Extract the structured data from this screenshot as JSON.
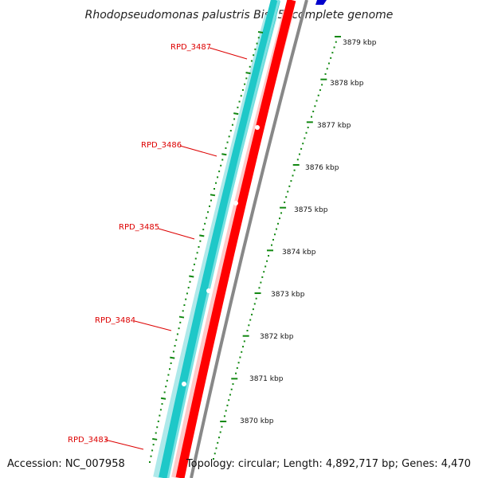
{
  "title": "Rhodopseudomonas palustris BisB5, complete genome",
  "footer": {
    "accession": "Accession: NC_007958",
    "summary": "Topology: circular; Length: 4,892,717 bp; Genes: 4,470"
  },
  "genes": [
    {
      "label": "RPD_3487"
    },
    {
      "label": "RPD_3486"
    },
    {
      "label": "RPD_3485"
    },
    {
      "label": "RPD_3484"
    },
    {
      "label": "RPD_3483"
    }
  ],
  "ticks": [
    {
      "label": "3879 kbp"
    },
    {
      "label": "3878 kbp"
    },
    {
      "label": "3877 kbp"
    },
    {
      "label": "3876 kbp"
    },
    {
      "label": "3875 kbp"
    },
    {
      "label": "3874 kbp"
    },
    {
      "label": "3873 kbp"
    },
    {
      "label": "3872 kbp"
    },
    {
      "label": "3871 kbp"
    },
    {
      "label": "3870 kbp"
    }
  ],
  "colors": {
    "label_red": "#dd0000",
    "cds_forward": "#ff0000",
    "cds_teal": "#1ec8c8",
    "backbone": "#888888",
    "dots": "#118811",
    "blue_feature": "#0000cc"
  }
}
